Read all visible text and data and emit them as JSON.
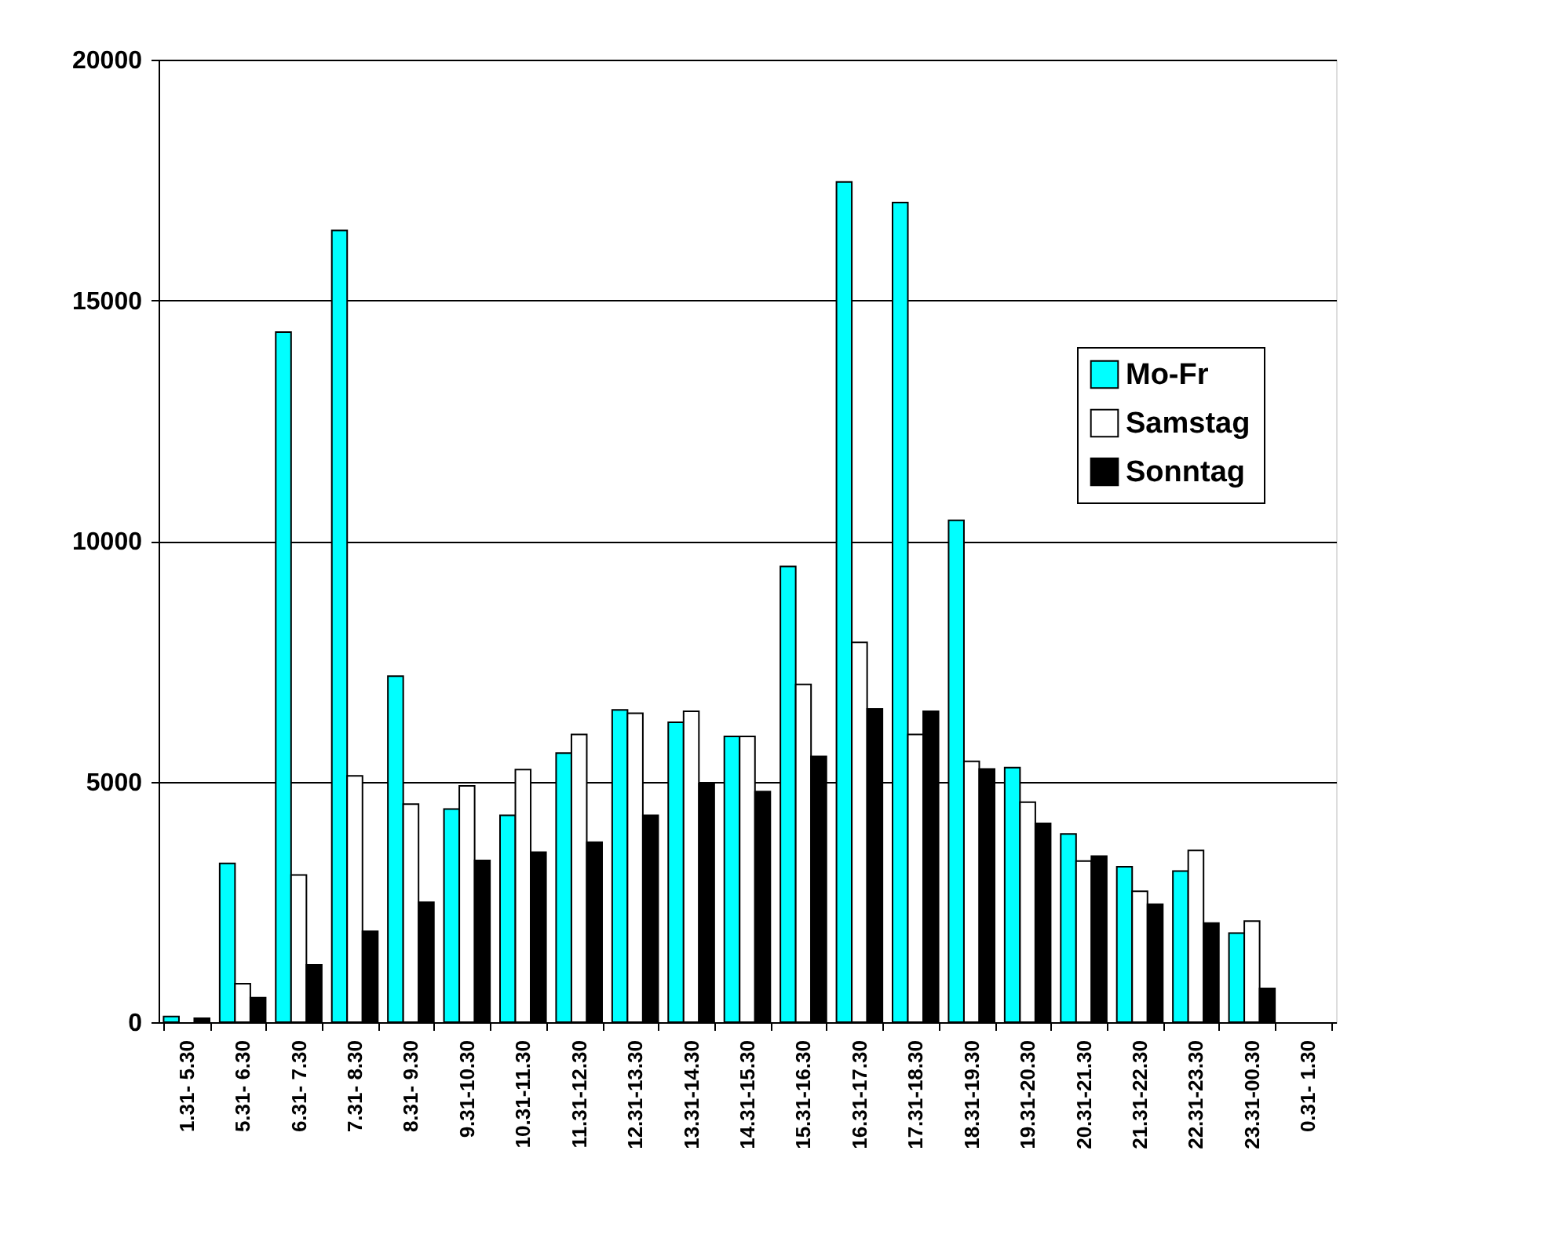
{
  "chart_data": {
    "type": "bar",
    "categories": [
      "1.31- 5.30",
      "5.31- 6.30",
      "6.31- 7.30",
      "7.31- 8.30",
      "8.31- 9.30",
      "9.31-10.30",
      "10.31-11.30",
      "11.31-12.30",
      "12.31-13.30",
      "13.31-14.30",
      "14.31-15.30",
      "15.31-16.30",
      "16.31-17.30",
      "17.31-18.30",
      "18.31-19.30",
      "19.31-20.30",
      "20.31-21.30",
      "21.31-22.30",
      "22.31-23.30",
      "23.31-00.30",
      "0.31- 1.30"
    ],
    "series": [
      {
        "name": "Mo-Fr",
        "color": "#00ffff",
        "values": [
          120,
          3300,
          14340,
          16450,
          7190,
          4430,
          4300,
          5590,
          6490,
          6230,
          5940,
          9470,
          17460,
          17030,
          10430,
          5290,
          3910,
          3230,
          3140,
          1850,
          null
        ]
      },
      {
        "name": "Samstag",
        "color": "#ffffff",
        "values": [
          null,
          800,
          3060,
          5120,
          4530,
          4910,
          5250,
          5980,
          6420,
          6460,
          5940,
          7020,
          7890,
          5980,
          5420,
          4570,
          3350,
          2720,
          3570,
          2100,
          null
        ]
      },
      {
        "name": "Sonntag",
        "color": "#000000",
        "values": [
          80,
          510,
          1190,
          1890,
          2490,
          3360,
          3530,
          3740,
          4300,
          4960,
          4790,
          5520,
          6510,
          6460,
          5260,
          4130,
          3450,
          2450,
          2060,
          700,
          null
        ]
      }
    ],
    "ylim": [
      0,
      20000
    ],
    "yticks": [
      0,
      5000,
      10000,
      15000,
      20000
    ],
    "grid": "y",
    "legend": "right"
  }
}
